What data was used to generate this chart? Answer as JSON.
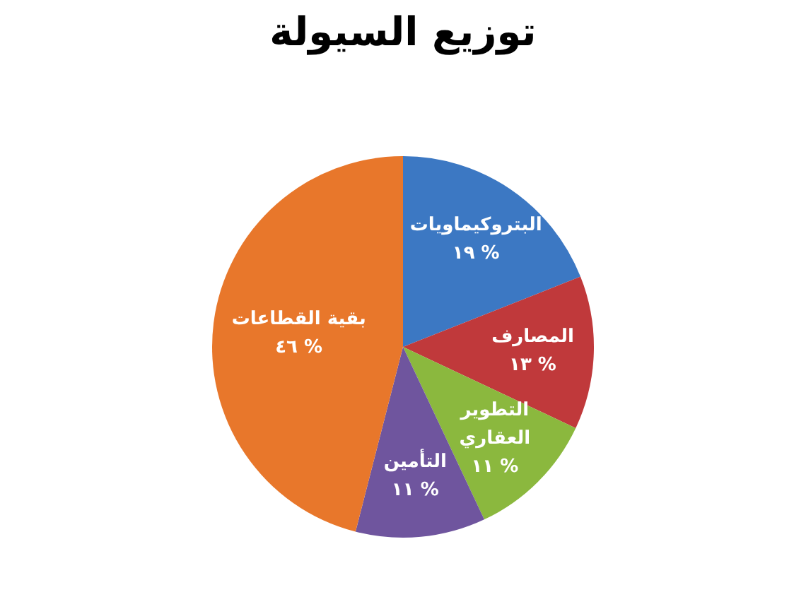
{
  "chart_data": {
    "type": "pie",
    "title": "توزيع السيولة",
    "categories": [
      "البتروكيماويات",
      "المصارف",
      "التطوير العقاري",
      "التأمين",
      "بقية القطاعات"
    ],
    "values": [
      19,
      13,
      11,
      11,
      46
    ],
    "colors": [
      "#3c78c3",
      "#c0393b",
      "#8bb83e",
      "#6f559e",
      "#e8772b"
    ],
    "value_labels": [
      "١٩ %",
      "١٣ %",
      "١١ %",
      "١١ %",
      "٤٦ %"
    ],
    "legend": false
  }
}
